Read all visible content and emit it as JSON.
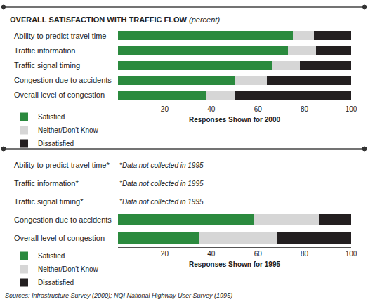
{
  "title": "OVERALL SATISFACTION WITH TRAFFIC FLOW",
  "subtitle": "(percent)",
  "source": "Sources: Infrastructure Survey (2000); NQI National Highway User Survey (1995)",
  "chart_data": [
    {
      "type": "bar",
      "orientation": "horizontal",
      "stacked": true,
      "x_label": "Responses Shown for 2000",
      "categories": [
        "Ability to predict travel time",
        "Traffic information",
        "Traffic signal timing",
        "Congestion due to accidents",
        "Overall level of congestion"
      ],
      "series": [
        {
          "name": "Satisfied",
          "color": "#2b8a3e",
          "values": [
            75,
            73,
            66,
            50,
            38
          ]
        },
        {
          "name": "Neither/Don't Know",
          "color": "#d6d6d6",
          "values": [
            9,
            12,
            12,
            14,
            12
          ]
        },
        {
          "name": "Dissatisfied",
          "color": "#231f20",
          "values": [
            16,
            15,
            22,
            36,
            50
          ]
        }
      ],
      "xlim": [
        0,
        100
      ],
      "xticks": [
        20,
        40,
        60,
        80,
        100
      ]
    },
    {
      "type": "bar",
      "orientation": "horizontal",
      "stacked": true,
      "x_label": "Responses Shown for 1995",
      "categories": [
        "Ability to predict travel time*",
        "Traffic information*",
        "Traffic signal timing*",
        "Congestion due to accidents",
        "Overall level of congestion"
      ],
      "series": [
        {
          "name": "Satisfied",
          "color": "#2b8a3e",
          "values": [
            null,
            null,
            null,
            58,
            35
          ]
        },
        {
          "name": "Neither/Don't Know",
          "color": "#d6d6d6",
          "values": [
            null,
            null,
            null,
            28,
            33
          ]
        },
        {
          "name": "Dissatisfied",
          "color": "#231f20",
          "values": [
            null,
            null,
            null,
            14,
            32
          ]
        }
      ],
      "annotations": [
        {
          "category": "Ability to predict travel time*",
          "text": "*Data not collected in 1995"
        },
        {
          "category": "Traffic information*",
          "text": "*Data not collected in 1995"
        },
        {
          "category": "Traffic signal timing*",
          "text": "*Data not collected in 1995"
        }
      ],
      "xlim": [
        0,
        100
      ],
      "xticks": [
        20,
        40,
        60,
        80,
        100
      ]
    }
  ]
}
